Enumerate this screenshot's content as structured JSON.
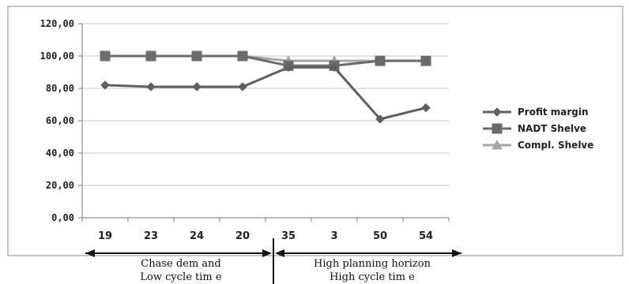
{
  "chart_data": {
    "type": "line",
    "categories": [
      "19",
      "23",
      "24",
      "20",
      "35",
      "3",
      "50",
      "54"
    ],
    "ylim": [
      0,
      120
    ],
    "y_ticks": [
      "0,00",
      "20,00",
      "40,00",
      "60,00",
      "80,00",
      "100,00",
      "120,00"
    ],
    "y_tick_values": [
      0,
      20,
      40,
      60,
      80,
      100,
      120
    ],
    "grid": "horizontal",
    "legend_position": "right",
    "series": [
      {
        "name": "Profit margin",
        "marker": "diamond",
        "color": "#5f5f5f",
        "values": [
          82,
          81,
          81,
          81,
          93,
          93,
          61,
          68
        ]
      },
      {
        "name": "NADT Shelve",
        "marker": "square",
        "color": "#6b6b6b",
        "values": [
          100,
          100,
          100,
          100,
          94,
          94,
          97,
          97
        ]
      },
      {
        "name": "Compl. Shelve",
        "marker": "triangle",
        "color": "#a6a6a6",
        "values": [
          100,
          100,
          100,
          100,
          97,
          97,
          97,
          97
        ]
      }
    ],
    "groups": [
      {
        "line1": "Chase dem and",
        "line2": "Low cycle tim e",
        "from": 0,
        "to": 3
      },
      {
        "line1": "High planning horizon",
        "line2": "High cycle tim e",
        "from": 4,
        "to": 7
      }
    ]
  }
}
